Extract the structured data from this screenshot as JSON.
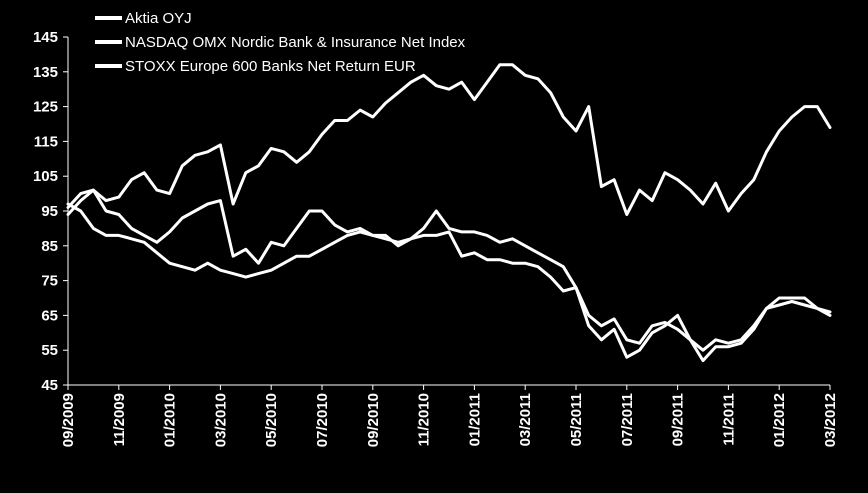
{
  "chart_data": {
    "type": "line",
    "title": "",
    "xlabel": "",
    "ylabel": "",
    "ylim": [
      45,
      145
    ],
    "y_ticks": [
      "145",
      "135",
      "125",
      "115",
      "105",
      "95",
      "85",
      "75",
      "65",
      "55",
      "45"
    ],
    "x_ticks": [
      "09/2009",
      "11/2009",
      "01/2010",
      "03/2010",
      "05/2010",
      "07/2010",
      "09/2010",
      "11/2010",
      "01/2011",
      "03/2011",
      "05/2011",
      "07/2011",
      "09/2011",
      "11/2011",
      "01/2012",
      "03/2012"
    ],
    "x_unit": "month index from 09/2009",
    "xlim": [
      0,
      30
    ],
    "grid": false,
    "legend_position": "top-left",
    "series": [
      {
        "name": "Aktia OYJ",
        "color": "#ffffff",
        "x": [
          0,
          0.5,
          1,
          1.5,
          2,
          2.5,
          3,
          3.5,
          4,
          4.5,
          5,
          5.5,
          6,
          6.5,
          7,
          7.5,
          8,
          8.5,
          9,
          9.5,
          10,
          10.5,
          11,
          11.5,
          12,
          12.5,
          13,
          13.5,
          14,
          14.5,
          15,
          15.5,
          16,
          16.5,
          17,
          17.5,
          18,
          18.5,
          19,
          19.5,
          20,
          20.5,
          21,
          21.5,
          22,
          22.5,
          23,
          23.5,
          24,
          24.5,
          25,
          25.5,
          26,
          26.5,
          27,
          27.5,
          28,
          28.5,
          29,
          29.5,
          30
        ],
        "values": [
          96,
          100,
          101,
          98,
          99,
          104,
          106,
          101,
          100,
          108,
          111,
          112,
          114,
          97,
          106,
          108,
          113,
          112,
          109,
          112,
          117,
          121,
          121,
          124,
          122,
          126,
          129,
          132,
          134,
          131,
          130,
          132,
          127,
          132,
          137,
          137,
          134,
          133,
          129,
          122,
          118,
          125,
          102,
          104,
          94,
          101,
          98,
          106,
          104,
          101,
          97,
          103,
          95,
          100,
          104,
          112,
          118,
          122,
          125,
          125,
          119
        ]
      },
      {
        "name": "NASDAQ OMX Nordic Bank & Insurance Net Index",
        "color": "#ffffff",
        "x": [
          0,
          0.5,
          1,
          1.5,
          2,
          2.5,
          3,
          3.5,
          4,
          4.5,
          5,
          5.5,
          6,
          6.5,
          7,
          7.5,
          8,
          8.5,
          9,
          9.5,
          10,
          10.5,
          11,
          11.5,
          12,
          12.5,
          13,
          13.5,
          14,
          14.5,
          15,
          15.5,
          16,
          16.5,
          17,
          17.5,
          18,
          18.5,
          19,
          19.5,
          20,
          20.5,
          21,
          21.5,
          22,
          22.5,
          23,
          23.5,
          24,
          24.5,
          25,
          25.5,
          26,
          26.5,
          27,
          27.5,
          28,
          28.5,
          29,
          29.5,
          30
        ],
        "values": [
          94,
          98,
          101,
          95,
          94,
          90,
          88,
          86,
          89,
          93,
          95,
          97,
          98,
          82,
          84,
          80,
          86,
          85,
          90,
          95,
          95,
          91,
          89,
          90,
          88,
          88,
          85,
          87,
          90,
          95,
          90,
          89,
          89,
          88,
          86,
          87,
          85,
          83,
          81,
          79,
          73,
          65,
          62,
          64,
          58,
          57,
          62,
          63,
          61,
          58,
          55,
          58,
          57,
          58,
          62,
          67,
          68,
          69,
          68,
          67,
          65
        ]
      },
      {
        "name": "STOXX Europe 600 Banks Net Return EUR",
        "color": "#ffffff",
        "x": [
          0,
          0.5,
          1,
          1.5,
          2,
          2.5,
          3,
          3.5,
          4,
          4.5,
          5,
          5.5,
          6,
          6.5,
          7,
          7.5,
          8,
          8.5,
          9,
          9.5,
          10,
          10.5,
          11,
          11.5,
          12,
          12.5,
          13,
          13.5,
          14,
          14.5,
          15,
          15.5,
          16,
          16.5,
          17,
          17.5,
          18,
          18.5,
          19,
          19.5,
          20,
          20.5,
          21,
          21.5,
          22,
          22.5,
          23,
          23.5,
          24,
          24.5,
          25,
          25.5,
          26,
          26.5,
          27,
          27.5,
          28,
          28.5,
          29,
          29.5,
          30
        ],
        "values": [
          97,
          95,
          90,
          88,
          88,
          87,
          86,
          83,
          80,
          79,
          78,
          80,
          78,
          77,
          76,
          77,
          78,
          80,
          82,
          82,
          84,
          86,
          88,
          89,
          88,
          87,
          86,
          87,
          88,
          88,
          89,
          82,
          83,
          81,
          81,
          80,
          80,
          79,
          76,
          72,
          73,
          62,
          58,
          61,
          53,
          55,
          60,
          62,
          65,
          58,
          52,
          56,
          56,
          57,
          61,
          67,
          70,
          70,
          70,
          67,
          66
        ]
      }
    ]
  }
}
